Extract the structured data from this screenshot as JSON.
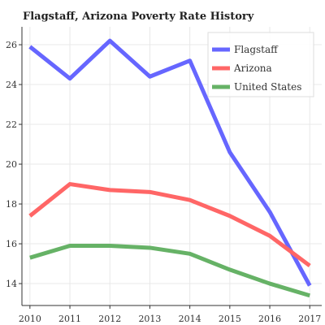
{
  "chart_data": {
    "type": "line",
    "title": "Flagstaff, Arizona Poverty Rate History",
    "xlabel": "",
    "ylabel": "",
    "x": [
      2010,
      2011,
      2012,
      2013,
      2014,
      2015,
      2016,
      2017
    ],
    "xlim": [
      2009.8,
      2017.3
    ],
    "ylim": [
      12.9,
      26.9
    ],
    "yticks": [
      14,
      16,
      18,
      20,
      22,
      24,
      26
    ],
    "grid": true,
    "legend_position": "top-right",
    "series": [
      {
        "name": "Flagstaff",
        "color": "#6666ff",
        "values": [
          25.9,
          24.3,
          26.2,
          24.4,
          25.2,
          20.6,
          17.6,
          13.9
        ]
      },
      {
        "name": "Arizona",
        "color": "#ff6666",
        "values": [
          17.4,
          19.0,
          18.7,
          18.6,
          18.2,
          17.4,
          16.4,
          14.9
        ]
      },
      {
        "name": "United States",
        "color": "#66b266",
        "values": [
          15.3,
          15.9,
          15.9,
          15.8,
          15.5,
          14.7,
          14.0,
          13.4
        ]
      }
    ]
  }
}
